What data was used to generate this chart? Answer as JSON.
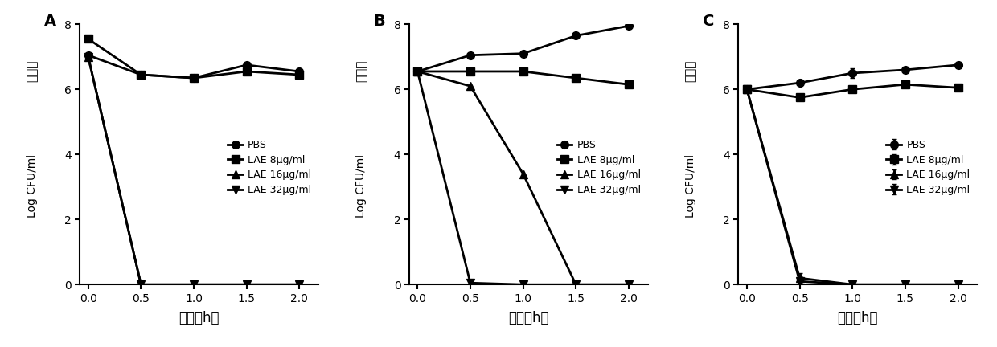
{
  "panels": [
    "A",
    "B",
    "C"
  ],
  "x": [
    0.0,
    0.5,
    1.0,
    1.5,
    2.0
  ],
  "series_labels": [
    "PBS",
    "LAE 8μg/ml",
    "LAE 16μg/ml",
    "LAE 32μg/ml"
  ],
  "markers": [
    "o",
    "s",
    "^",
    "v"
  ],
  "panel_A": {
    "PBS": [
      7.05,
      6.45,
      6.35,
      6.75,
      6.55
    ],
    "LAE8": [
      7.55,
      6.45,
      6.35,
      6.55,
      6.45
    ],
    "LAE16": [
      7.0,
      0.0,
      0.0,
      0.0,
      0.0
    ],
    "LAE32": [
      7.0,
      0.0,
      0.0,
      0.0,
      0.0
    ]
  },
  "panel_B": {
    "PBS": [
      6.55,
      7.05,
      7.1,
      7.65,
      7.95
    ],
    "LAE8": [
      6.55,
      6.55,
      6.55,
      6.35,
      6.15
    ],
    "LAE16": [
      6.55,
      6.1,
      3.4,
      0.0,
      0.0
    ],
    "LAE32": [
      6.55,
      0.05,
      0.0,
      0.0,
      0.0
    ]
  },
  "panel_C": {
    "PBS": [
      6.0,
      6.2,
      6.5,
      6.6,
      6.75
    ],
    "LAE8": [
      6.0,
      5.75,
      6.0,
      6.15,
      6.05
    ],
    "LAE16": [
      6.0,
      0.2,
      0.0,
      0.0,
      0.0
    ],
    "LAE32": [
      6.0,
      0.1,
      0.0,
      0.0,
      0.0
    ]
  },
  "panel_C_errorbars": {
    "PBS": [
      0.0,
      0.05,
      0.15,
      0.08,
      0.05
    ],
    "LAE8": [
      0.0,
      0.05,
      0.08,
      0.08,
      0.05
    ],
    "LAE16": [
      0.0,
      0.15,
      0.0,
      0.0,
      0.0
    ],
    "LAE32": [
      0.0,
      0.15,
      0.0,
      0.0,
      0.0
    ]
  },
  "ylabel_cn": "活菌量",
  "ylabel_en": "Log CFU/ml",
  "xlabel": "时间（h）",
  "ylim": [
    0,
    8
  ],
  "yticks": [
    0,
    2,
    4,
    6,
    8
  ],
  "xticks": [
    0.0,
    0.5,
    1.0,
    1.5,
    2.0
  ],
  "linewidth": 2.0,
  "markersize": 7,
  "color": "#000000",
  "legend_fontsize": 9,
  "tick_fontsize": 10,
  "label_fontsize": 11,
  "panel_label_fontsize": 14
}
